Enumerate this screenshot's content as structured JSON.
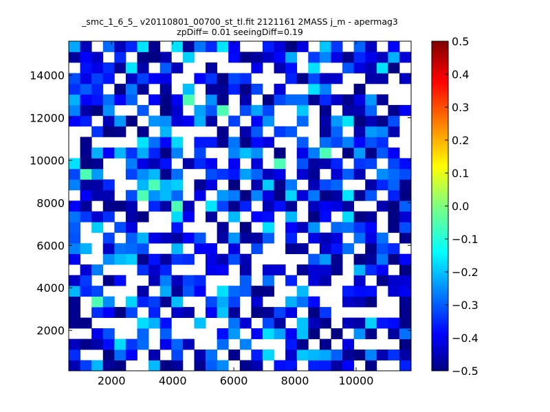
{
  "chart_data": {
    "type": "heatmap",
    "title_line1": "_smc_1_6_5_ v20110801_00700_st_tl.fit 2121161 2MASS j_m - apermag3",
    "title_line2": "zpDiff= 0.01 seeingDiff=0.19",
    "xlim": [
      600,
      11800
    ],
    "ylim": [
      100,
      15600
    ],
    "x_ticks": [
      2000,
      4000,
      6000,
      8000,
      10000
    ],
    "y_ticks": [
      2000,
      4000,
      6000,
      8000,
      10000,
      12000,
      14000
    ],
    "x_tick_labels": [
      "2000",
      "4000",
      "6000",
      "8000",
      "10000"
    ],
    "y_tick_labels": [
      "2000",
      "4000",
      "6000",
      "8000",
      "10000",
      "12000",
      "14000"
    ],
    "colorbar": {
      "colormap": "jet",
      "range": [
        -0.5,
        0.5
      ],
      "ticks": [
        0.5,
        0.4,
        0.3,
        0.2,
        0.1,
        0.0,
        -0.1,
        -0.2,
        -0.3,
        -0.4,
        -0.5
      ],
      "tick_labels": [
        "0.5",
        "0.4",
        "0.3",
        "0.2",
        "0.1",
        "0.0",
        "−0.1",
        "−0.2",
        "−0.3",
        "−0.4",
        "−0.5"
      ]
    },
    "grid": false,
    "bin_size": [
      373,
      500
    ],
    "seed": 7,
    "empty_fraction": 0.32
  }
}
